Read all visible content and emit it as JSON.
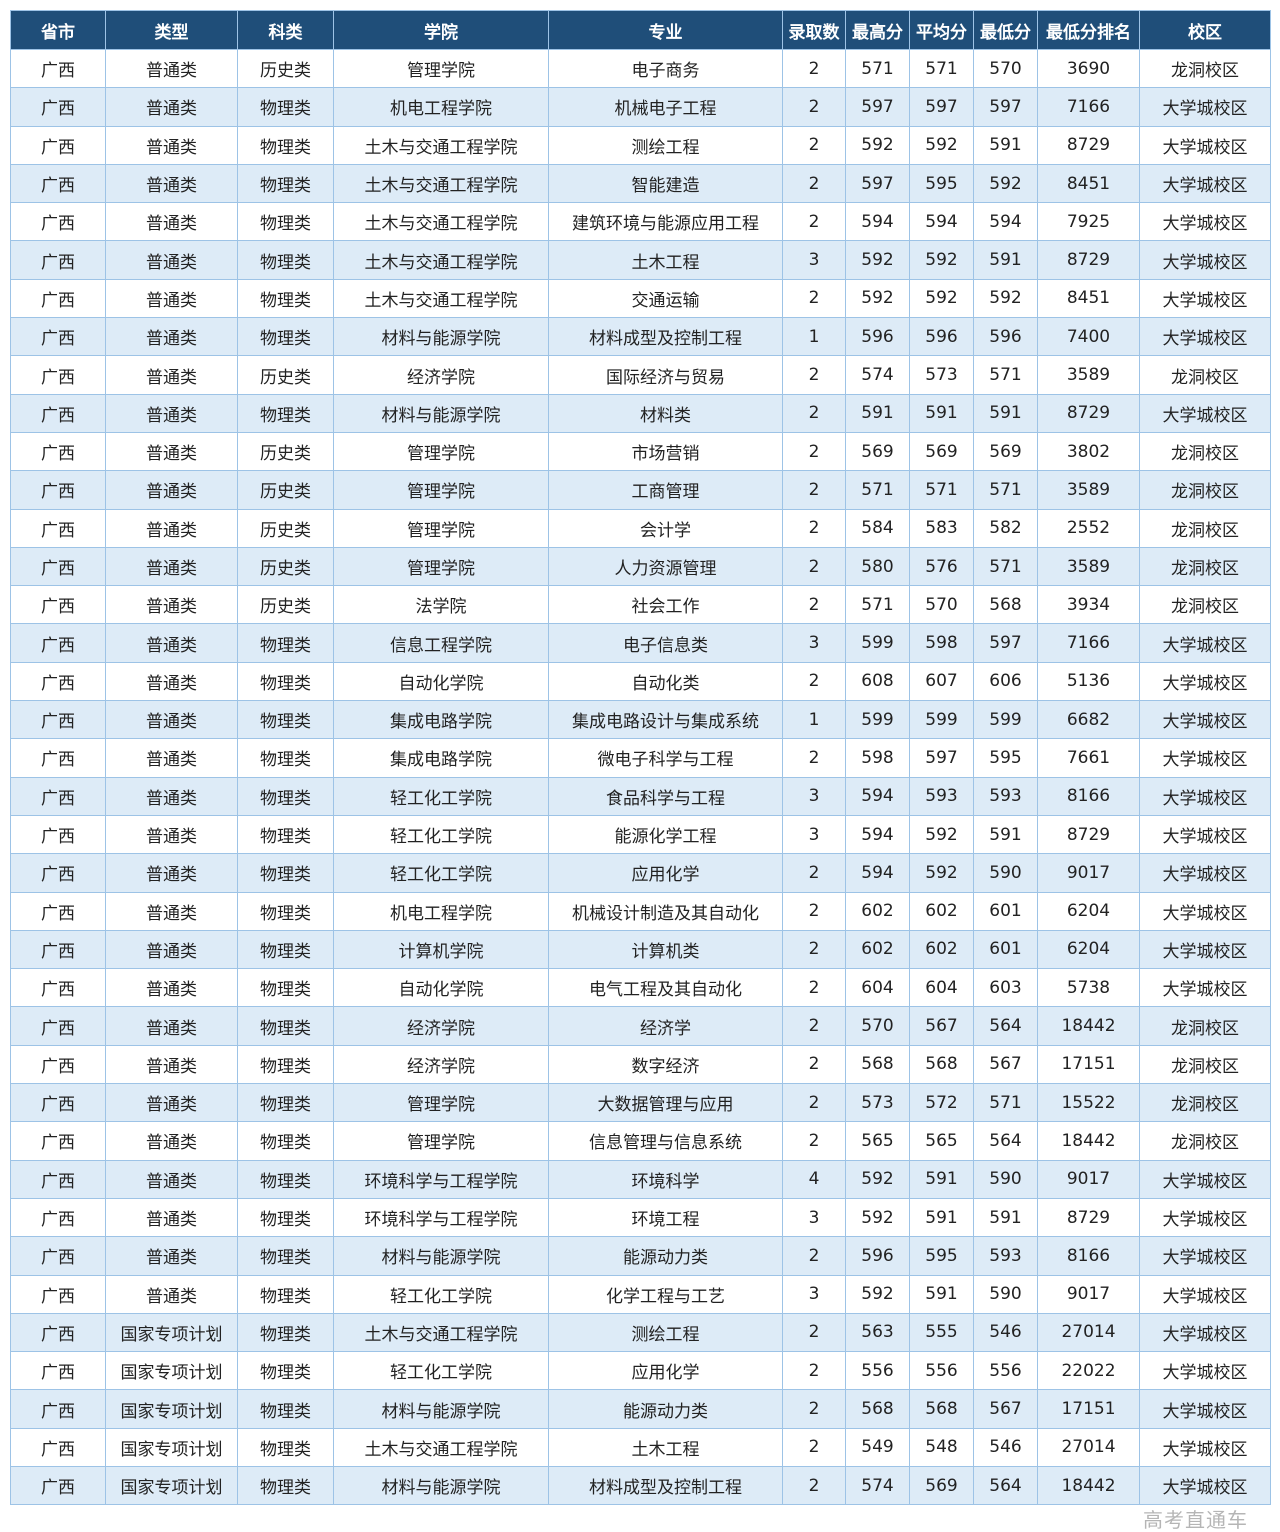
{
  "colors": {
    "header_bg": "#1f4e79",
    "header_text": "#ffffff",
    "alt_row": "#ddebf7",
    "border": "#9dc3e6"
  },
  "headers": [
    "省市",
    "类型",
    "科类",
    "学院",
    "专业",
    "录取数",
    "最高分",
    "平均分",
    "最低分",
    "最低分排名",
    "校区"
  ],
  "rows": [
    [
      "广西",
      "普通类",
      "历史类",
      "管理学院",
      "电子商务",
      "2",
      "571",
      "571",
      "570",
      "3690",
      "龙洞校区"
    ],
    [
      "广西",
      "普通类",
      "物理类",
      "机电工程学院",
      "机械电子工程",
      "2",
      "597",
      "597",
      "597",
      "7166",
      "大学城校区"
    ],
    [
      "广西",
      "普通类",
      "物理类",
      "土木与交通工程学院",
      "测绘工程",
      "2",
      "592",
      "592",
      "591",
      "8729",
      "大学城校区"
    ],
    [
      "广西",
      "普通类",
      "物理类",
      "土木与交通工程学院",
      "智能建造",
      "2",
      "597",
      "595",
      "592",
      "8451",
      "大学城校区"
    ],
    [
      "广西",
      "普通类",
      "物理类",
      "土木与交通工程学院",
      "建筑环境与能源应用工程",
      "2",
      "594",
      "594",
      "594",
      "7925",
      "大学城校区"
    ],
    [
      "广西",
      "普通类",
      "物理类",
      "土木与交通工程学院",
      "土木工程",
      "3",
      "592",
      "592",
      "591",
      "8729",
      "大学城校区"
    ],
    [
      "广西",
      "普通类",
      "物理类",
      "土木与交通工程学院",
      "交通运输",
      "2",
      "592",
      "592",
      "592",
      "8451",
      "大学城校区"
    ],
    [
      "广西",
      "普通类",
      "物理类",
      "材料与能源学院",
      "材料成型及控制工程",
      "1",
      "596",
      "596",
      "596",
      "7400",
      "大学城校区"
    ],
    [
      "广西",
      "普通类",
      "历史类",
      "经济学院",
      "国际经济与贸易",
      "2",
      "574",
      "573",
      "571",
      "3589",
      "龙洞校区"
    ],
    [
      "广西",
      "普通类",
      "物理类",
      "材料与能源学院",
      "材料类",
      "2",
      "591",
      "591",
      "591",
      "8729",
      "大学城校区"
    ],
    [
      "广西",
      "普通类",
      "历史类",
      "管理学院",
      "市场营销",
      "2",
      "569",
      "569",
      "569",
      "3802",
      "龙洞校区"
    ],
    [
      "广西",
      "普通类",
      "历史类",
      "管理学院",
      "工商管理",
      "2",
      "571",
      "571",
      "571",
      "3589",
      "龙洞校区"
    ],
    [
      "广西",
      "普通类",
      "历史类",
      "管理学院",
      "会计学",
      "2",
      "584",
      "583",
      "582",
      "2552",
      "龙洞校区"
    ],
    [
      "广西",
      "普通类",
      "历史类",
      "管理学院",
      "人力资源管理",
      "2",
      "580",
      "576",
      "571",
      "3589",
      "龙洞校区"
    ],
    [
      "广西",
      "普通类",
      "历史类",
      "法学院",
      "社会工作",
      "2",
      "571",
      "570",
      "568",
      "3934",
      "龙洞校区"
    ],
    [
      "广西",
      "普通类",
      "物理类",
      "信息工程学院",
      "电子信息类",
      "3",
      "599",
      "598",
      "597",
      "7166",
      "大学城校区"
    ],
    [
      "广西",
      "普通类",
      "物理类",
      "自动化学院",
      "自动化类",
      "2",
      "608",
      "607",
      "606",
      "5136",
      "大学城校区"
    ],
    [
      "广西",
      "普通类",
      "物理类",
      "集成电路学院",
      "集成电路设计与集成系统",
      "1",
      "599",
      "599",
      "599",
      "6682",
      "大学城校区"
    ],
    [
      "广西",
      "普通类",
      "物理类",
      "集成电路学院",
      "微电子科学与工程",
      "2",
      "598",
      "597",
      "595",
      "7661",
      "大学城校区"
    ],
    [
      "广西",
      "普通类",
      "物理类",
      "轻工化工学院",
      "食品科学与工程",
      "3",
      "594",
      "593",
      "593",
      "8166",
      "大学城校区"
    ],
    [
      "广西",
      "普通类",
      "物理类",
      "轻工化工学院",
      "能源化学工程",
      "3",
      "594",
      "592",
      "591",
      "8729",
      "大学城校区"
    ],
    [
      "广西",
      "普通类",
      "物理类",
      "轻工化工学院",
      "应用化学",
      "2",
      "594",
      "592",
      "590",
      "9017",
      "大学城校区"
    ],
    [
      "广西",
      "普通类",
      "物理类",
      "机电工程学院",
      "机械设计制造及其自动化",
      "2",
      "602",
      "602",
      "601",
      "6204",
      "大学城校区"
    ],
    [
      "广西",
      "普通类",
      "物理类",
      "计算机学院",
      "计算机类",
      "2",
      "602",
      "602",
      "601",
      "6204",
      "大学城校区"
    ],
    [
      "广西",
      "普通类",
      "物理类",
      "自动化学院",
      "电气工程及其自动化",
      "2",
      "604",
      "604",
      "603",
      "5738",
      "大学城校区"
    ],
    [
      "广西",
      "普通类",
      "物理类",
      "经济学院",
      "经济学",
      "2",
      "570",
      "567",
      "564",
      "18442",
      "龙洞校区"
    ],
    [
      "广西",
      "普通类",
      "物理类",
      "经济学院",
      "数字经济",
      "2",
      "568",
      "568",
      "567",
      "17151",
      "龙洞校区"
    ],
    [
      "广西",
      "普通类",
      "物理类",
      "管理学院",
      "大数据管理与应用",
      "2",
      "573",
      "572",
      "571",
      "15522",
      "龙洞校区"
    ],
    [
      "广西",
      "普通类",
      "物理类",
      "管理学院",
      "信息管理与信息系统",
      "2",
      "565",
      "565",
      "564",
      "18442",
      "龙洞校区"
    ],
    [
      "广西",
      "普通类",
      "物理类",
      "环境科学与工程学院",
      "环境科学",
      "4",
      "592",
      "591",
      "590",
      "9017",
      "大学城校区"
    ],
    [
      "广西",
      "普通类",
      "物理类",
      "环境科学与工程学院",
      "环境工程",
      "3",
      "592",
      "591",
      "591",
      "8729",
      "大学城校区"
    ],
    [
      "广西",
      "普通类",
      "物理类",
      "材料与能源学院",
      "能源动力类",
      "2",
      "596",
      "595",
      "593",
      "8166",
      "大学城校区"
    ],
    [
      "广西",
      "普通类",
      "物理类",
      "轻工化工学院",
      "化学工程与工艺",
      "3",
      "592",
      "591",
      "590",
      "9017",
      "大学城校区"
    ],
    [
      "广西",
      "国家专项计划",
      "物理类",
      "土木与交通工程学院",
      "测绘工程",
      "2",
      "563",
      "555",
      "546",
      "27014",
      "大学城校区"
    ],
    [
      "广西",
      "国家专项计划",
      "物理类",
      "轻工化工学院",
      "应用化学",
      "2",
      "556",
      "556",
      "556",
      "22022",
      "大学城校区"
    ],
    [
      "广西",
      "国家专项计划",
      "物理类",
      "材料与能源学院",
      "能源动力类",
      "2",
      "568",
      "568",
      "567",
      "17151",
      "大学城校区"
    ],
    [
      "广西",
      "国家专项计划",
      "物理类",
      "土木与交通工程学院",
      "土木工程",
      "2",
      "549",
      "548",
      "546",
      "27014",
      "大学城校区"
    ],
    [
      "广西",
      "国家专项计划",
      "物理类",
      "材料与能源学院",
      "材料成型及控制工程",
      "2",
      "574",
      "569",
      "564",
      "18442",
      "大学城校区"
    ]
  ],
  "watermark": "高考直通车"
}
